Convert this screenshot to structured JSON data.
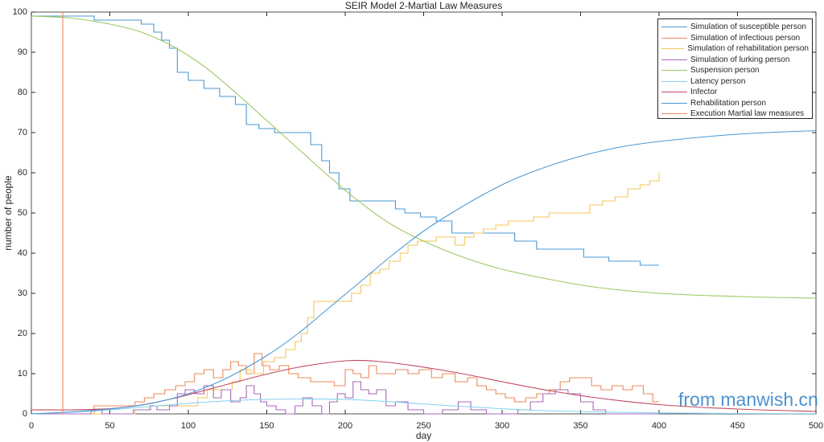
{
  "chart_data": {
    "type": "line",
    "title": "SEIR Model 2-Martial Law Measures",
    "xlabel": "day",
    "ylabel": "number of people",
    "xlim": [
      0,
      500
    ],
    "ylim": [
      0,
      100
    ],
    "xticks": [
      0,
      50,
      100,
      150,
      200,
      250,
      300,
      350,
      400,
      450,
      500
    ],
    "yticks": [
      0,
      10,
      20,
      30,
      40,
      50,
      60,
      70,
      80,
      90,
      100
    ],
    "legend_position": "top-right",
    "series": [
      {
        "name": "Simulation of susceptible person",
        "color": "#4a9ad6",
        "step": true,
        "x": [
          0,
          40,
          70,
          78,
          83,
          88,
          93,
          100,
          110,
          120,
          130,
          137,
          145,
          155,
          178,
          185,
          190,
          196,
          203,
          212,
          232,
          238,
          248,
          258,
          268,
          300,
          308,
          322,
          340,
          352,
          368,
          388,
          400
        ],
        "y": [
          99,
          98,
          97,
          95,
          93,
          91,
          85,
          83,
          81,
          79,
          77,
          72,
          71,
          70,
          67,
          63,
          60,
          56,
          53,
          53,
          51,
          50,
          49,
          48,
          45,
          45,
          43,
          41,
          41,
          39,
          38,
          37,
          37
        ]
      },
      {
        "name": "Simulation of infectious person",
        "color": "#ec8a5e",
        "step": true,
        "x": [
          0,
          40,
          66,
          72,
          78,
          85,
          92,
          98,
          104,
          110,
          116,
          122,
          127,
          132,
          137,
          142,
          147,
          152,
          158,
          164,
          170,
          178,
          186,
          193,
          200,
          205,
          210,
          215,
          220,
          226,
          232,
          240,
          247,
          255,
          262,
          270,
          278,
          284,
          290,
          296,
          302,
          308,
          315,
          322,
          330,
          337,
          343,
          350,
          357,
          363,
          370,
          377,
          383,
          390,
          396,
          400
        ],
        "y": [
          0,
          2,
          3,
          4,
          5,
          6,
          7,
          8,
          10,
          11,
          9,
          11,
          13,
          12,
          10,
          15,
          12,
          11,
          12,
          10,
          9,
          8,
          8,
          7,
          11,
          10,
          9,
          12,
          10,
          10,
          11,
          10,
          11,
          9,
          10,
          8,
          9,
          7,
          6,
          5,
          4,
          3,
          4,
          5,
          6,
          8,
          9,
          9,
          7,
          6,
          7,
          6,
          7,
          5,
          3,
          3
        ]
      },
      {
        "name": "Simulation of rehabilitation person",
        "color": "#f5c65a",
        "step": true,
        "x": [
          0,
          66,
          75,
          100,
          106,
          112,
          120,
          128,
          133,
          140,
          148,
          155,
          162,
          168,
          172,
          176,
          180,
          198,
          204,
          210,
          216,
          222,
          228,
          235,
          240,
          246,
          252,
          258,
          264,
          270,
          276,
          282,
          288,
          296,
          304,
          312,
          320,
          330,
          345,
          356,
          364,
          372,
          380,
          388,
          394,
          400
        ],
        "y": [
          0,
          1,
          2,
          2,
          4,
          6,
          6,
          8,
          11,
          10,
          13,
          14,
          16,
          18,
          20,
          24,
          28,
          28,
          30,
          32,
          35,
          36,
          38,
          40,
          42,
          43,
          43,
          44,
          44,
          42,
          44,
          45,
          46,
          47,
          48,
          48,
          49,
          50,
          50,
          52,
          53,
          54,
          56,
          57,
          58,
          60
        ]
      },
      {
        "name": "Simulation of lurking person",
        "color": "#a868b8",
        "step": true,
        "x": [
          0,
          38,
          45,
          65,
          76,
          80,
          88,
          93,
          98,
          104,
          110,
          116,
          121,
          127,
          133,
          137,
          142,
          146,
          150,
          156,
          162,
          168,
          173,
          179,
          185,
          190,
          195,
          200,
          205,
          210,
          215,
          220,
          226,
          232,
          240,
          250,
          262,
          272,
          280,
          290,
          300,
          310,
          318,
          326,
          334,
          342,
          350,
          358,
          366,
          374,
          400
        ],
        "y": [
          0,
          1,
          0,
          1,
          2,
          1,
          2,
          5,
          6,
          5,
          7,
          4,
          6,
          3,
          4,
          7,
          5,
          3,
          2,
          1,
          0,
          2,
          4,
          2,
          0,
          3,
          5,
          4,
          8,
          6,
          5,
          6,
          2,
          3,
          1,
          0,
          1,
          3,
          1,
          0,
          0,
          1,
          3,
          5,
          6,
          5,
          3,
          1,
          0,
          0,
          0
        ]
      },
      {
        "name": "Suspension person",
        "color": "#9cc860",
        "x": [
          0,
          25,
          50,
          70,
          90,
          110,
          130,
          150,
          170,
          190,
          210,
          230,
          250,
          275,
          300,
          330,
          360,
          400,
          450,
          500
        ],
        "y": [
          99,
          98.5,
          97,
          95,
          91.5,
          86.5,
          80,
          73,
          66,
          59,
          52.5,
          47,
          43,
          39,
          36,
          33.5,
          31.5,
          30,
          29.2,
          28.8
        ]
      },
      {
        "name": "Latency person",
        "color": "#84d2f0",
        "x": [
          0,
          25,
          50,
          80,
          110,
          140,
          170,
          200,
          230,
          260,
          290,
          320,
          360,
          400,
          450,
          500
        ],
        "y": [
          0,
          0.4,
          1,
          2,
          2.9,
          3.5,
          3.7,
          3.6,
          3,
          2.2,
          1.5,
          0.9,
          0.5,
          0.25,
          0.1,
          0.05
        ]
      },
      {
        "name": "Infector",
        "color": "#c0485e",
        "x": [
          0,
          25,
          50,
          70,
          90,
          110,
          130,
          150,
          170,
          190,
          205,
          220,
          240,
          260,
          280,
          300,
          330,
          360,
          400,
          450,
          500
        ],
        "y": [
          1,
          1,
          1.3,
          2.2,
          3.8,
          5.8,
          7.9,
          9.9,
          11.6,
          12.8,
          13.3,
          13.1,
          12.2,
          11,
          9.6,
          8,
          5.8,
          4,
          2.3,
          1.2,
          0.6
        ]
      },
      {
        "name": "Rehabilitation person",
        "color": "#4a9ad6",
        "x": [
          0,
          25,
          50,
          75,
          100,
          125,
          150,
          170,
          190,
          210,
          230,
          250,
          270,
          290,
          310,
          340,
          370,
          400,
          450,
          500
        ],
        "y": [
          0,
          0.5,
          1.2,
          2.5,
          5,
          9,
          14.5,
          20,
          26.5,
          33,
          39.5,
          45.5,
          50.5,
          55,
          58.8,
          63,
          66,
          67.8,
          69.6,
          70.5
        ]
      },
      {
        "name": "Execution Martial law measures",
        "color": "#ec8a5e",
        "x": [
          20,
          20
        ],
        "y": [
          0,
          100
        ]
      }
    ]
  },
  "watermark": "from manwish.cn"
}
